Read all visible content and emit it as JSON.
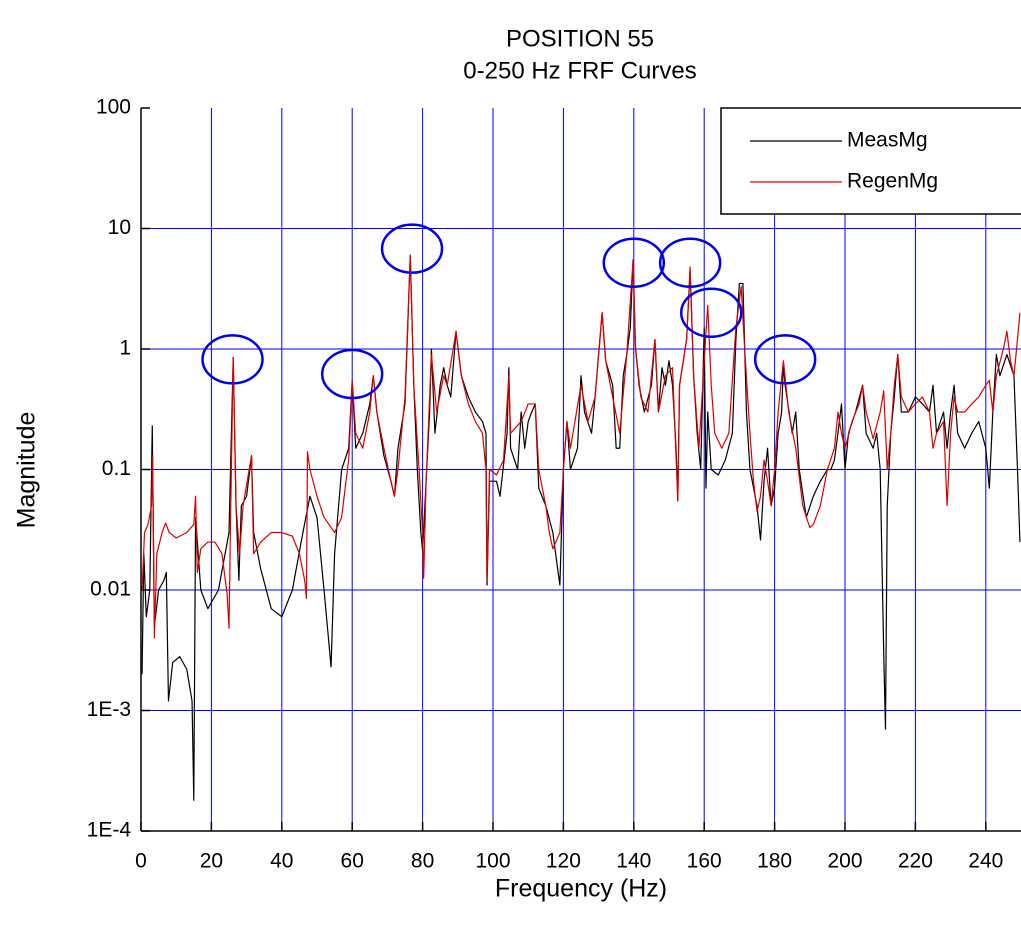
{
  "chart_data": {
    "type": "line",
    "title": "POSITION 55",
    "subtitle": "0-250 Hz FRF Curves",
    "x_label": "Frequency (Hz)",
    "y_label": "Magnitude",
    "xlim": [
      0,
      250
    ],
    "ylim": [
      0.0001,
      100
    ],
    "y_scale": "log",
    "xticks": [
      0,
      20,
      40,
      60,
      80,
      100,
      120,
      140,
      160,
      180,
      200,
      220,
      240
    ],
    "yticks": [
      {
        "value": 0.0001,
        "label": "1E-4"
      },
      {
        "value": 0.001,
        "label": "1E-3"
      },
      0.01,
      0.1,
      1,
      10,
      100
    ],
    "grid": true,
    "grid_color": "#0000ff",
    "legend_position": "top-right",
    "highlight_color": "#0000ee",
    "highlights": [
      {
        "x": 26,
        "y": 0.82
      },
      {
        "x": 60,
        "y": 0.62
      },
      {
        "x": 77,
        "y": 6.8
      },
      {
        "x": 140,
        "y": 5.2
      },
      {
        "x": 156,
        "y": 5.2
      },
      {
        "x": 162,
        "y": 2.0
      },
      {
        "x": 183,
        "y": 0.82
      }
    ],
    "series": [
      {
        "name": "MeasMg",
        "color": "#000000",
        "x": [
          0.3,
          0.8,
          1.5,
          2.5,
          3.2,
          3.8,
          5,
          6.5,
          7.2,
          7.8,
          9,
          11,
          13,
          14.5,
          15,
          15.5,
          17,
          19,
          22,
          25,
          26.2,
          27,
          27.8,
          28.5,
          30,
          31.4,
          32,
          34,
          37,
          40,
          43,
          46,
          48,
          50,
          52,
          54,
          55,
          57,
          59,
          60,
          61,
          63,
          65,
          66,
          67,
          69,
          71,
          72,
          73,
          75,
          76.5,
          77.5,
          78.5,
          79.5,
          80,
          81,
          82,
          82.5,
          83.5,
          85,
          86,
          87,
          88,
          89.5,
          91,
          93,
          95,
          97,
          98,
          98.3,
          99,
          101,
          102,
          104,
          104.5,
          105,
          107,
          108,
          109,
          110,
          111,
          112,
          113,
          115,
          117,
          118,
          119,
          120,
          121,
          122,
          124,
          125,
          126,
          128,
          129,
          131,
          132,
          134,
          135,
          136,
          137,
          138,
          139,
          139.8,
          140.5,
          141.5,
          143,
          145,
          146,
          147,
          148,
          149,
          150,
          151,
          152,
          152.5,
          153,
          155,
          156,
          157,
          158,
          159,
          160,
          160.5,
          161,
          162,
          164,
          166,
          168,
          169,
          170,
          171,
          172,
          173,
          175,
          176,
          177,
          178,
          179,
          180,
          181,
          182,
          182.5,
          183,
          185,
          186,
          187,
          189,
          191,
          193,
          195,
          196,
          197,
          198,
          199,
          200,
          201,
          203,
          205,
          206,
          208,
          209,
          210,
          211,
          211.5,
          212,
          213,
          214,
          215,
          216,
          218,
          220,
          222,
          224,
          225,
          226,
          228,
          229,
          230,
          231,
          232,
          234,
          236,
          238,
          240,
          241,
          242,
          243,
          244,
          246,
          248,
          249,
          249.7
        ],
        "values": [
          0.002,
          0.02,
          0.006,
          0.01,
          0.23,
          0.005,
          0.01,
          0.012,
          0.014,
          0.0012,
          0.0025,
          0.0028,
          0.0022,
          0.0012,
          0.00018,
          0.04,
          0.01,
          0.007,
          0.01,
          0.03,
          0.85,
          0.05,
          0.012,
          0.05,
          0.06,
          0.13,
          0.03,
          0.015,
          0.007,
          0.006,
          0.01,
          0.03,
          0.06,
          0.04,
          0.01,
          0.0023,
          0.02,
          0.1,
          0.15,
          0.55,
          0.15,
          0.2,
          0.35,
          0.6,
          0.3,
          0.13,
          0.08,
          0.06,
          0.15,
          0.35,
          6.0,
          0.5,
          0.1,
          0.03,
          0.021,
          0.08,
          0.3,
          1.0,
          0.2,
          0.5,
          0.7,
          0.5,
          0.4,
          1.4,
          0.6,
          0.4,
          0.3,
          0.25,
          0.2,
          0.011,
          0.08,
          0.08,
          0.06,
          0.2,
          0.7,
          0.15,
          0.1,
          0.3,
          0.15,
          0.25,
          0.3,
          0.35,
          0.07,
          0.05,
          0.03,
          0.018,
          0.011,
          0.1,
          0.25,
          0.1,
          0.15,
          0.6,
          0.3,
          0.2,
          0.4,
          2.0,
          0.8,
          0.5,
          0.15,
          0.15,
          0.6,
          0.9,
          1.5,
          5.5,
          1.0,
          0.5,
          0.3,
          0.5,
          1.2,
          0.3,
          0.7,
          0.5,
          0.8,
          0.5,
          0.15,
          0.055,
          0.5,
          1.2,
          4.5,
          0.6,
          0.2,
          0.1,
          1.5,
          0.07,
          0.3,
          0.1,
          0.09,
          0.12,
          0.2,
          1.2,
          3.5,
          3.5,
          0.3,
          0.1,
          0.05,
          0.026,
          0.08,
          0.15,
          0.05,
          0.07,
          0.2,
          0.3,
          0.75,
          0.5,
          0.2,
          0.3,
          0.1,
          0.04,
          0.06,
          0.08,
          0.1,
          0.1,
          0.12,
          0.2,
          0.35,
          0.1,
          0.2,
          0.3,
          0.5,
          0.2,
          0.15,
          0.2,
          0.1,
          0.003,
          0.0007,
          0.05,
          0.2,
          0.4,
          0.9,
          0.3,
          0.3,
          0.4,
          0.35,
          0.3,
          0.5,
          0.2,
          0.3,
          0.15,
          0.3,
          0.5,
          0.2,
          0.15,
          0.2,
          0.25,
          0.15,
          0.07,
          0.3,
          0.9,
          0.6,
          0.9,
          0.6,
          0.1,
          0.025
        ]
      },
      {
        "name": "RegenMg",
        "color": "#dd0000",
        "x": [
          0.3,
          1,
          2,
          3,
          3.3,
          3.8,
          4.5,
          6,
          7,
          8,
          10,
          13,
          15,
          15.5,
          16,
          17,
          19,
          21,
          23,
          24.5,
          25,
          25.5,
          26.2,
          27,
          28,
          29,
          31.4,
          32,
          34,
          37,
          40,
          43,
          45,
          46.5,
          47,
          47.3,
          48,
          50,
          52,
          55,
          57,
          58,
          59,
          60,
          61,
          63,
          65,
          66,
          67,
          69,
          71,
          72,
          73,
          75,
          76.5,
          77.5,
          79,
          80,
          80.3,
          81,
          82,
          82.5,
          84,
          86,
          87,
          89.5,
          91,
          93,
          95,
          97,
          98,
          98.3,
          99,
          101,
          103,
          104.5,
          105,
          108,
          110,
          112,
          113,
          115,
          116,
          117,
          119,
          120,
          121,
          122,
          125,
          127,
          129,
          131,
          132,
          134,
          136,
          138,
          139.8,
          140.5,
          142,
          144,
          146,
          147,
          149,
          151,
          152.5,
          153,
          155,
          156,
          157,
          158.5,
          160,
          161,
          162,
          163,
          165,
          167,
          169,
          170.5,
          171.5,
          173,
          174,
          175,
          176,
          177,
          178,
          179,
          180,
          181,
          182.5,
          184,
          186,
          188,
          190,
          191,
          193,
          195,
          197,
          198,
          199,
          200,
          202,
          204,
          205,
          206,
          208,
          210,
          211,
          212,
          213,
          214,
          215,
          216,
          218,
          220,
          222,
          224,
          225,
          226,
          228,
          229,
          230,
          231,
          232,
          234,
          236,
          238,
          240,
          241,
          242,
          243,
          245,
          246,
          247,
          248,
          249,
          249.7
        ],
        "values": [
          0.01,
          0.03,
          0.035,
          0.05,
          0.13,
          0.004,
          0.02,
          0.03,
          0.036,
          0.03,
          0.027,
          0.03,
          0.035,
          0.06,
          0.014,
          0.022,
          0.025,
          0.025,
          0.02,
          0.009,
          0.0048,
          0.05,
          0.85,
          0.05,
          0.02,
          0.05,
          0.13,
          0.02,
          0.025,
          0.03,
          0.03,
          0.028,
          0.02,
          0.012,
          0.0085,
          0.14,
          0.1,
          0.06,
          0.04,
          0.03,
          0.04,
          0.07,
          0.12,
          0.55,
          0.2,
          0.15,
          0.3,
          0.6,
          0.3,
          0.15,
          0.08,
          0.06,
          0.1,
          0.4,
          6.0,
          0.5,
          0.1,
          0.03,
          0.0125,
          0.08,
          0.4,
          0.9,
          0.3,
          0.6,
          0.5,
          1.4,
          0.6,
          0.35,
          0.25,
          0.2,
          0.1,
          0.012,
          0.1,
          0.09,
          0.12,
          0.6,
          0.2,
          0.25,
          0.35,
          0.35,
          0.1,
          0.05,
          0.03,
          0.022,
          0.03,
          0.1,
          0.25,
          0.15,
          0.5,
          0.25,
          0.4,
          2.0,
          0.8,
          0.4,
          0.2,
          0.9,
          5.5,
          1.0,
          0.4,
          0.3,
          1.2,
          0.3,
          0.6,
          0.7,
          0.055,
          0.5,
          1.2,
          4.8,
          0.6,
          0.15,
          0.8,
          2.3,
          0.5,
          0.2,
          0.15,
          0.2,
          1.5,
          3.3,
          1.0,
          0.2,
          0.08,
          0.045,
          0.06,
          0.12,
          0.08,
          0.05,
          0.1,
          0.3,
          0.8,
          0.3,
          0.15,
          0.05,
          0.033,
          0.035,
          0.05,
          0.1,
          0.15,
          0.3,
          0.2,
          0.15,
          0.25,
          0.35,
          0.5,
          0.3,
          0.18,
          0.3,
          0.45,
          0.1,
          0.2,
          0.5,
          0.9,
          0.4,
          0.3,
          0.35,
          0.4,
          0.3,
          0.15,
          0.2,
          0.25,
          0.05,
          0.2,
          0.4,
          0.3,
          0.3,
          0.35,
          0.4,
          0.5,
          0.55,
          0.3,
          0.6,
          1.0,
          1.4,
          0.8,
          0.6,
          1.2,
          2.0
        ]
      }
    ]
  }
}
